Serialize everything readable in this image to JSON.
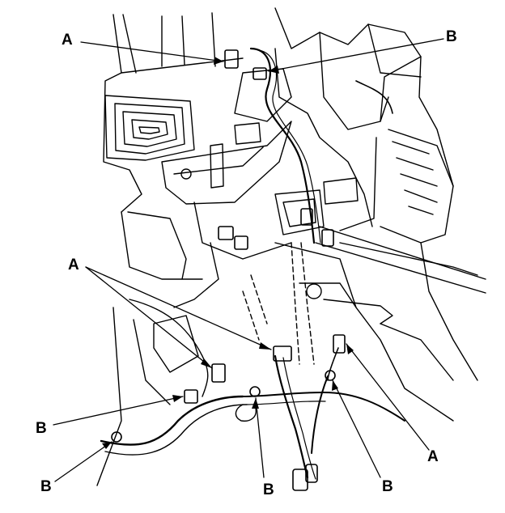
{
  "labels": {
    "a_top_left": "A",
    "b_top_right": "B",
    "a_mid_left": "A",
    "b_mid_left": "B",
    "b_bottom_left": "B",
    "b_bottom_center": "B",
    "b_bottom_right": "B",
    "a_bottom_right": "A"
  },
  "colors": {
    "line": "#000000",
    "background": "#ffffff"
  }
}
